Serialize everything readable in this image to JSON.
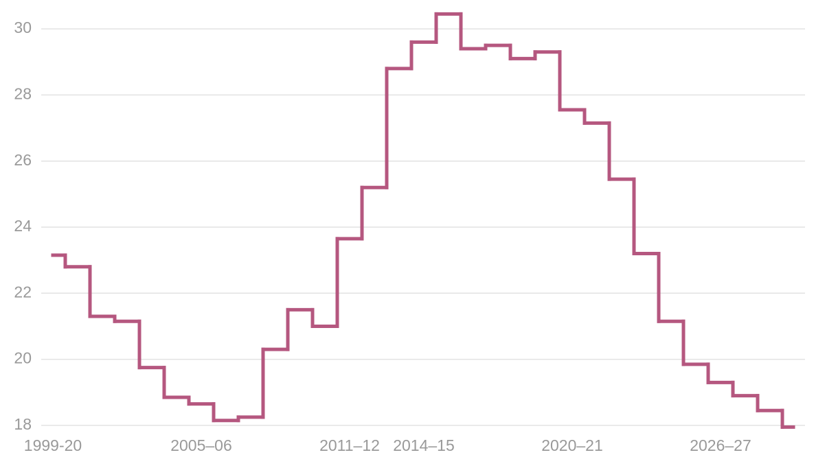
{
  "chart_data": {
    "type": "step",
    "categories": [
      "1999-20",
      null,
      null,
      null,
      null,
      null,
      "2005–06",
      null,
      null,
      null,
      null,
      null,
      "2011–12",
      null,
      null,
      "2014–15",
      null,
      null,
      null,
      null,
      null,
      "2020–21",
      null,
      null,
      null,
      null,
      null,
      "2026–27",
      null,
      null,
      null
    ],
    "series": [
      {
        "color": "#b5577f",
        "values": [
          23.15,
          22.8,
          21.3,
          21.15,
          19.75,
          18.85,
          18.65,
          18.15,
          18.25,
          20.3,
          21.5,
          21.0,
          23.65,
          25.2,
          28.8,
          29.6,
          30.45,
          29.4,
          29.5,
          29.1,
          29.3,
          27.55,
          27.15,
          25.45,
          23.2,
          21.15,
          19.85,
          19.3,
          18.9,
          18.45,
          17.95
        ]
      }
    ],
    "ylim": [
      17.5,
      30.5
    ],
    "yticks": [
      18,
      20,
      22,
      24,
      26,
      28,
      30
    ],
    "grid": true
  }
}
